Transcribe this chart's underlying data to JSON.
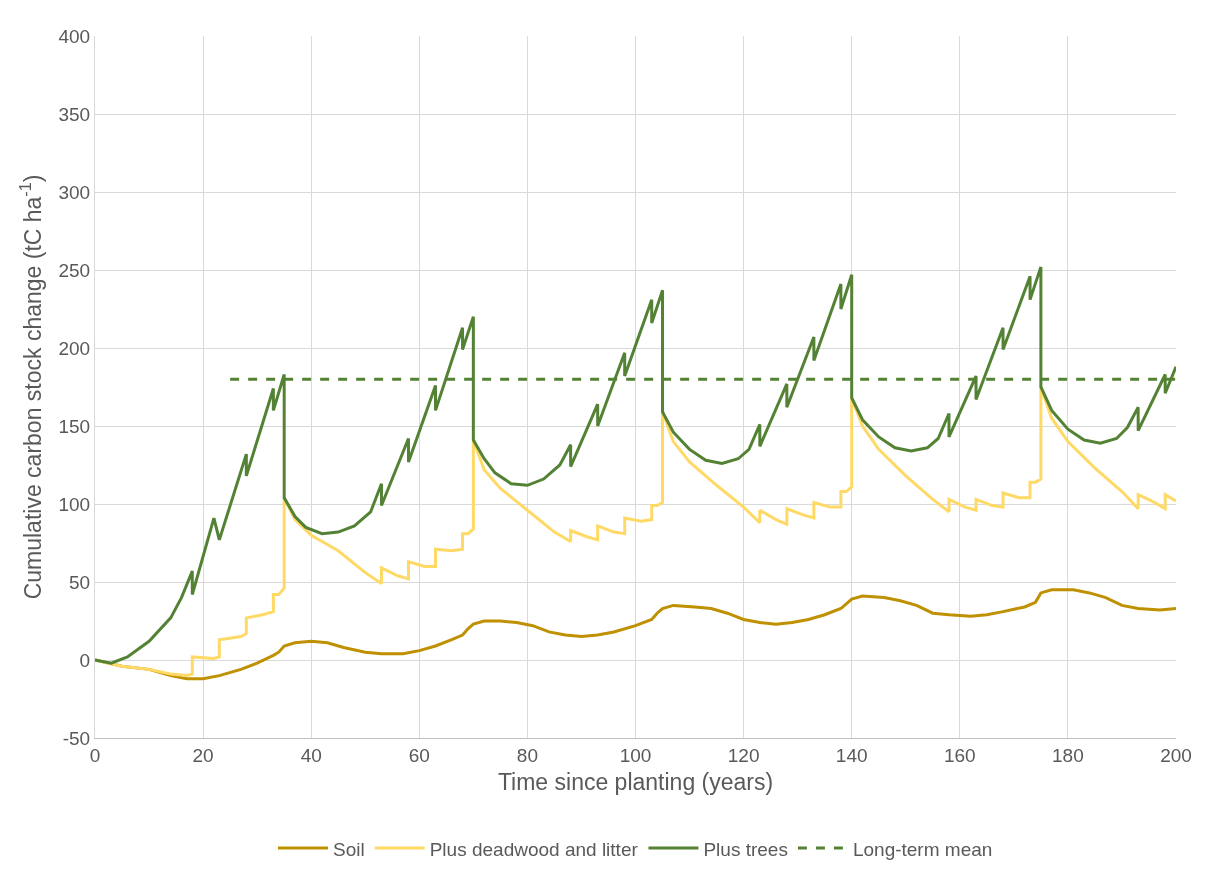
{
  "chart_data": {
    "type": "line",
    "xlabel": "Time since planting (years)",
    "ylabel": "Cumulative carbon stock change (tC ha$^{-1}$)",
    "xlim": [
      0,
      200
    ],
    "xticks": [
      0,
      20,
      40,
      60,
      80,
      100,
      120,
      140,
      160,
      180,
      200
    ],
    "ylim": [
      -50,
      400
    ],
    "yticks": [
      -50,
      0,
      50,
      100,
      150,
      200,
      250,
      300,
      350,
      400
    ],
    "grid": true,
    "legend": "bottom",
    "marker": "none",
    "series": [
      {
        "name": "Soil",
        "color": "#bf9000",
        "line_style": "solid",
        "x": [
          0,
          5,
          10,
          14,
          17,
          20,
          23,
          27,
          30,
          33,
          34,
          35,
          37,
          40,
          43,
          46,
          50,
          53,
          57,
          60,
          63,
          66,
          68,
          69,
          70,
          72,
          75,
          78,
          81,
          84,
          87,
          90,
          93,
          96,
          100,
          103,
          104,
          105,
          107,
          111,
          114,
          117,
          120,
          123,
          126,
          129,
          132,
          135,
          138,
          139,
          140,
          142,
          146,
          149,
          152,
          155,
          158,
          162,
          165,
          168,
          172,
          174,
          175,
          177,
          181,
          184,
          187,
          190,
          193,
          197,
          200
        ],
        "values": [
          0,
          -4,
          -6,
          -10,
          -12,
          -12,
          -10,
          -6,
          -2,
          3,
          5,
          9,
          11,
          12,
          11,
          8,
          5,
          4,
          4,
          6,
          9,
          13,
          16,
          20,
          23,
          25,
          25,
          24,
          22,
          18,
          16,
          15,
          16,
          18,
          22,
          26,
          30,
          33,
          35,
          34,
          33,
          30,
          26,
          24,
          23,
          24,
          26,
          29,
          33,
          36,
          39,
          41,
          40,
          38,
          35,
          30,
          29,
          28,
          29,
          31,
          34,
          37,
          43,
          45,
          45,
          43,
          40,
          35,
          33,
          32,
          33
        ]
      },
      {
        "name": "Plus deadwood and litter",
        "color": "#ffd966",
        "line_style": "solid",
        "x": [
          0,
          5,
          10,
          14,
          17,
          18,
          18,
          22,
          23,
          23,
          27,
          28,
          28,
          31,
          33,
          33,
          34,
          35,
          35,
          37,
          40,
          45,
          50,
          53,
          53,
          56,
          58,
          58,
          61,
          63,
          63,
          66,
          68,
          68,
          69,
          70,
          70,
          72,
          75,
          80,
          85,
          88,
          88,
          91,
          93,
          93,
          96,
          98,
          98,
          101,
          103,
          103,
          104,
          105,
          105,
          107,
          110,
          115,
          120,
          123,
          123,
          126,
          128,
          128,
          131,
          133,
          133,
          136,
          138,
          138,
          139,
          140,
          140,
          142,
          145,
          150,
          155,
          158,
          158,
          161,
          163,
          163,
          166,
          168,
          168,
          171,
          173,
          173,
          174,
          175,
          175,
          177,
          180,
          185,
          190,
          193,
          193,
          196,
          198,
          198,
          200
        ],
        "values": [
          0,
          -4,
          -6,
          -9,
          -10,
          -9,
          2,
          1,
          2,
          13,
          15,
          17,
          27,
          29,
          31,
          42,
          42,
          46,
          104,
          90,
          80,
          70,
          56,
          49,
          59,
          54,
          52,
          63,
          60,
          60,
          71,
          70,
          71,
          81,
          81,
          84,
          141,
          122,
          110,
          96,
          82,
          76,
          83,
          79,
          77,
          86,
          82,
          81,
          91,
          89,
          90,
          99,
          99,
          101,
          159,
          140,
          127,
          112,
          98,
          88,
          96,
          90,
          87,
          97,
          93,
          91,
          101,
          98,
          98,
          108,
          108,
          111,
          168,
          150,
          135,
          118,
          103,
          95,
          103,
          98,
          96,
          103,
          99,
          98,
          107,
          104,
          104,
          114,
          114,
          116,
          175,
          155,
          140,
          123,
          108,
          97,
          106,
          101,
          97,
          106,
          102
        ]
      },
      {
        "name": "Plus trees",
        "color": "#548235",
        "line_style": "solid",
        "x": [
          0,
          3,
          6,
          10,
          14,
          16,
          18,
          18,
          22,
          23,
          28,
          28,
          33,
          33,
          35,
          35,
          37,
          39,
          42,
          45,
          48,
          51,
          53,
          53,
          58,
          58,
          63,
          63,
          68,
          68,
          70,
          70,
          72,
          74,
          77,
          80,
          83,
          86,
          88,
          88,
          93,
          93,
          98,
          98,
          103,
          103,
          105,
          105,
          107,
          110,
          113,
          116,
          119,
          121,
          123,
          123,
          128,
          128,
          133,
          133,
          138,
          138,
          140,
          140,
          142,
          145,
          148,
          151,
          154,
          156,
          158,
          158,
          163,
          163,
          168,
          168,
          173,
          173,
          175,
          175,
          177,
          180,
          183,
          186,
          189,
          191,
          193,
          193,
          198,
          198,
          200
        ],
        "values": [
          0,
          -2,
          2,
          12,
          27,
          40,
          57,
          42,
          91,
          77,
          132,
          118,
          174,
          160,
          183,
          104,
          92,
          85,
          81,
          82,
          86,
          95,
          113,
          99,
          142,
          127,
          176,
          160,
          213,
          199,
          220,
          141,
          129,
          120,
          113,
          112,
          116,
          125,
          138,
          124,
          164,
          150,
          197,
          182,
          231,
          216,
          237,
          159,
          146,
          135,
          128,
          126,
          129,
          135,
          151,
          137,
          177,
          162,
          207,
          192,
          241,
          225,
          247,
          168,
          154,
          143,
          136,
          134,
          136,
          142,
          158,
          143,
          182,
          167,
          213,
          199,
          246,
          231,
          252,
          175,
          160,
          148,
          141,
          139,
          142,
          149,
          162,
          147,
          183,
          171,
          188
        ]
      },
      {
        "name": "Long-term mean",
        "color": "#548235",
        "line_style": "dashed",
        "x": [
          25,
          200
        ],
        "values": [
          180,
          180
        ]
      }
    ]
  }
}
